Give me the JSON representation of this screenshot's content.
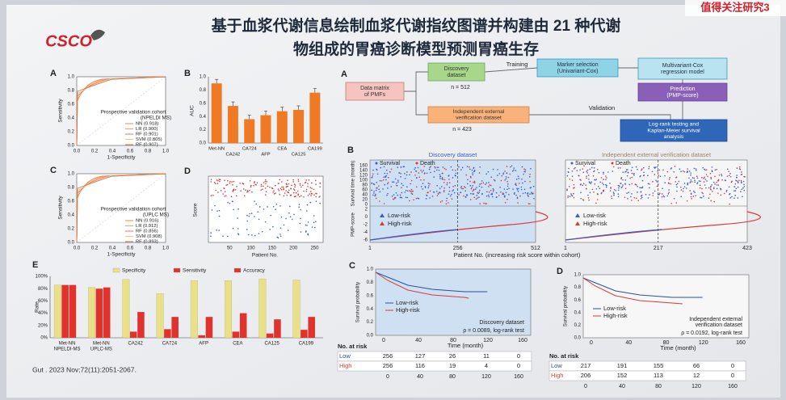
{
  "watermark": "值得关注研究3",
  "logo": "CSCO",
  "title": {
    "line1": "基于血浆代谢信息绘制血浆代谢指纹图谱并构建由 21 种代谢",
    "line2": "物组成的胃癌诊断模型预测胃癌生存"
  },
  "roc_a": {
    "label": "A",
    "y_label": "Sensitivity",
    "x_label": "1-Specificity",
    "ticks": [
      "0.0",
      "0.2",
      "0.4",
      "0.6",
      "0.8",
      "1.0"
    ],
    "legend_title": "Prospective validation cohort",
    "legend_subtitle": "(NPELDI MS)",
    "legend": [
      "NN (0.918)",
      "LR (0.900)",
      "RF (0.901)",
      "SVM (0.805)",
      "RF (0.907)"
    ]
  },
  "roc_c": {
    "label": "C",
    "y_label": "Sensitivity",
    "x_label": "1-Specificity",
    "ticks": [
      "0.0",
      "0.2",
      "0.4",
      "0.6",
      "0.8",
      "1.0"
    ],
    "legend_title": "Prospective validation cohort",
    "legend_subtitle": "(UPLC MS)",
    "legend": [
      "NN (0.916)",
      "LR (0.912)",
      "RF (0.856)",
      "SVM (0.908)",
      "RF (0.893)"
    ]
  },
  "auc_b": {
    "label": "B",
    "y_label": "AUC",
    "yticks": [
      "0.0",
      "0.2",
      "0.4",
      "0.6",
      "0.8",
      "1.0"
    ],
    "categories": [
      "Met-NN",
      "CA242",
      "CA724",
      "AFP",
      "CEA",
      "CA125",
      "CA199"
    ]
  },
  "score_d": {
    "label": "D",
    "y_label": "Score",
    "x_label": "Patient No.",
    "xticks": [
      "50",
      "100",
      "150",
      "200",
      "250"
    ]
  },
  "rate_e": {
    "label": "E",
    "y_label": "Rate",
    "legend": [
      "Specificity",
      "Sensitivity",
      "Accuracy"
    ],
    "yticks": [
      "0%",
      "20%",
      "40%",
      "60%",
      "80%",
      "100%"
    ],
    "categories": [
      [
        "Met-NN",
        "NPELDI-MS"
      ],
      [
        "Met-NN",
        "UPLC-MS"
      ],
      [
        "CA242"
      ],
      [
        "CA724"
      ],
      [
        "AFP"
      ],
      [
        "CEA"
      ],
      [
        "CA125"
      ],
      [
        "CA199"
      ]
    ]
  },
  "citation": "Gut . 2023 Nov;72(11):2051-2067.",
  "flow": {
    "label": "A",
    "data_matrix": [
      "Data matrix",
      "of PMFs"
    ],
    "discovery": [
      "Discovery",
      "dataset"
    ],
    "discovery_n": "n = 512",
    "training": "Training",
    "marker": [
      "Marker selection",
      "(Univariant-Cox)"
    ],
    "multivariant": [
      "Multivariant-Cox",
      "regression model"
    ],
    "prediction": [
      "Prediction",
      "(PMP-score)"
    ],
    "independent": [
      "Independent external",
      "verification dataset"
    ],
    "independent_n": "n = 423",
    "validation": "Validation",
    "logrank": [
      "Log-rank testing and",
      "Kaplan-Meier survival",
      "analysis"
    ]
  },
  "risk_b": {
    "label": "B",
    "left_title": "Discovery dataset",
    "right_title": "Independent external verification dataset",
    "legend": [
      "Survival",
      "Death"
    ],
    "risk_legend": [
      "Low-risk",
      "High-risk"
    ],
    "y_label_top": "Survival time (month)",
    "y_label_bottom": "PMP-score",
    "yticks_top": [
      "0",
      "20",
      "40",
      "60",
      "80",
      "100",
      "120",
      "140",
      "160"
    ],
    "yticks_bottom": [
      "-6",
      "-4",
      "-2",
      "0",
      "2"
    ],
    "left_xticks": [
      "1",
      "256",
      "512"
    ],
    "right_xticks": [
      "1",
      "217",
      "423"
    ],
    "x_label": "Patient No. (increasing risk score within cohort)"
  },
  "km_c": {
    "label": "C",
    "y_label": "Survival probability",
    "yticks": [
      "0.0",
      "0.2",
      "0.4",
      "0.6",
      "0.8",
      "1.0"
    ],
    "legend": [
      "Low-risk",
      "High-risk"
    ],
    "dataset": [
      "Discovery dataset"
    ],
    "test": "ρ = 0.0089, log-rank test",
    "xticks": [
      "0",
      "40",
      "80",
      "120",
      "160"
    ],
    "x_label": "Time (month)",
    "risk_title": "No. at risk",
    "risk_rows": [
      [
        "Low",
        "256",
        "127",
        "26",
        "11",
        "0"
      ],
      [
        "High",
        "256",
        "116",
        "19",
        "4",
        "0"
      ]
    ],
    "risk_times": [
      "0",
      "40",
      "80",
      "120",
      "160"
    ]
  },
  "km_d": {
    "label": "D",
    "y_label": "Survival probability",
    "yticks": [
      "0.0",
      "0.2",
      "0.4",
      "0.6",
      "0.8",
      "1.0"
    ],
    "legend": [
      "Low-risk",
      "High-risk"
    ],
    "dataset": [
      "Independent external",
      "verification dataset"
    ],
    "test": "ρ = 0.0192, log-rank test",
    "xticks": [
      "0",
      "40",
      "80",
      "120",
      "160"
    ],
    "x_label": "Time (month)",
    "risk_title": "No. at risk",
    "risk_rows": [
      [
        "Low",
        "217",
        "191",
        "155",
        "66",
        "0"
      ],
      [
        "High",
        "206",
        "152",
        "113",
        "12",
        "0"
      ]
    ],
    "risk_times": [
      "0",
      "40",
      "80",
      "120",
      "160"
    ]
  }
}
